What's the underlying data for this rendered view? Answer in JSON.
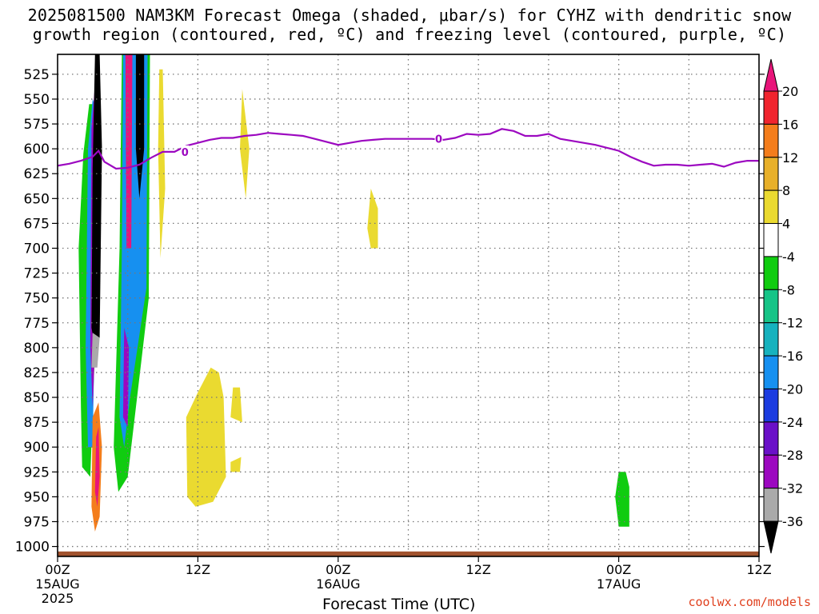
{
  "title_line1": "2025081500 NAM3KM Forecast Omega (shaded, μbar/s) for CYHZ with dendritic snow",
  "title_line2": "growth region (contoured, red, ºC) and freezing level (contoured, purple, ºC)",
  "credit": "coolwx.com/models",
  "chart_data": {
    "type": "time-height cross section",
    "title": "2025081500 NAM3KM Forecast Omega (shaded, μbar/s) for CYHZ with dendritic snow growth region (contoured, red, ºC) and freezing level (contoured, purple, ºC)",
    "xlabel": "Forecast Time (UTC)",
    "ylabel": "",
    "x_range_hours": [
      0,
      60
    ],
    "y_range_hPa": [
      1010,
      505
    ],
    "grid": true,
    "x_ticks": [
      {
        "hour": 0,
        "label": "00Z",
        "date": "15AUG",
        "year": "2025"
      },
      {
        "hour": 12,
        "label": "12Z",
        "date": "",
        "year": ""
      },
      {
        "hour": 24,
        "label": "00Z",
        "date": "16AUG",
        "year": ""
      },
      {
        "hour": 36,
        "label": "12Z",
        "date": "",
        "year": ""
      },
      {
        "hour": 48,
        "label": "00Z",
        "date": "17AUG",
        "year": ""
      },
      {
        "hour": 60,
        "label": "12Z",
        "date": "",
        "year": ""
      }
    ],
    "y_ticks": [
      "525",
      "550",
      "575",
      "600",
      "625",
      "650",
      "675",
      "700",
      "725",
      "750",
      "775",
      "800",
      "825",
      "850",
      "875",
      "900",
      "925",
      "950",
      "975",
      "1000"
    ],
    "colorbar": {
      "labels": [
        "20",
        "16",
        "12",
        "8",
        "4",
        "-4",
        "-8",
        "-12",
        "-16",
        "-20",
        "-24",
        "-28",
        "-32",
        "-36"
      ],
      "colors": [
        "#e8157a",
        "#f0242e",
        "#f47d1c",
        "#e8b02a",
        "#eada30",
        "#ffffff",
        "#10cc10",
        "#16c487",
        "#16b2be",
        "#1690f0",
        "#1c3ce0",
        "#6a10c8",
        "#9c08c0",
        "#aaaaaa",
        "#000000"
      ]
    },
    "freezing_level_label": "0",
    "freezing_level_hPa": [
      [
        0,
        617
      ],
      [
        1,
        615
      ],
      [
        2,
        612
      ],
      [
        3,
        608
      ],
      [
        3.5,
        602
      ],
      [
        4,
        613
      ],
      [
        5,
        620
      ],
      [
        6,
        619
      ],
      [
        7,
        616
      ],
      [
        8,
        609
      ],
      [
        9,
        603
      ],
      [
        10,
        603
      ],
      [
        11,
        597
      ],
      [
        12,
        594
      ],
      [
        13,
        591
      ],
      [
        14,
        589
      ],
      [
        15,
        589
      ],
      [
        16,
        587
      ],
      [
        17,
        586
      ],
      [
        18,
        584
      ],
      [
        19,
        585
      ],
      [
        20,
        586
      ],
      [
        21,
        587
      ],
      [
        22,
        590
      ],
      [
        23,
        593
      ],
      [
        24,
        596
      ],
      [
        25,
        594
      ],
      [
        26,
        592
      ],
      [
        27,
        591
      ],
      [
        28,
        590
      ],
      [
        29,
        590
      ],
      [
        30,
        590
      ],
      [
        31,
        590
      ],
      [
        32,
        590
      ],
      [
        33,
        591
      ],
      [
        34,
        589
      ],
      [
        35,
        585
      ],
      [
        36,
        586
      ],
      [
        37,
        585
      ],
      [
        38,
        580
      ],
      [
        39,
        582
      ],
      [
        40,
        587
      ],
      [
        41,
        587
      ],
      [
        42,
        585
      ],
      [
        43,
        590
      ],
      [
        44,
        592
      ],
      [
        45,
        594
      ],
      [
        46,
        596
      ],
      [
        47,
        599
      ],
      [
        48,
        602
      ],
      [
        49,
        608
      ],
      [
        50,
        613
      ],
      [
        51,
        617
      ],
      [
        52,
        616
      ],
      [
        53,
        616
      ],
      [
        54,
        617
      ],
      [
        55,
        616
      ],
      [
        56,
        615
      ],
      [
        57,
        618
      ],
      [
        58,
        614
      ],
      [
        59,
        612
      ],
      [
        60,
        612
      ]
    ],
    "surface_hPa": 1005,
    "omega_regions": [
      {
        "level": "-8",
        "color": "#10cc10",
        "polygon": [
          [
            2.2,
            605
          ],
          [
            1.8,
            700
          ],
          [
            2.0,
            860
          ],
          [
            2.1,
            920
          ],
          [
            2.8,
            930
          ],
          [
            3.2,
            800
          ],
          [
            3.5,
            600
          ],
          [
            3.3,
            555
          ],
          [
            2.7,
            555
          ]
        ]
      },
      {
        "level": "-16",
        "color": "#1690f0",
        "polygon": [
          [
            2.6,
            600
          ],
          [
            2.4,
            800
          ],
          [
            2.6,
            900
          ],
          [
            3.0,
            900
          ],
          [
            3.3,
            700
          ],
          [
            3.3,
            560
          ],
          [
            3.0,
            550
          ]
        ]
      },
      {
        "level": "-28",
        "color": "#9c08c0",
        "polygon": [
          [
            2.9,
            580
          ],
          [
            2.8,
            800
          ],
          [
            3.0,
            860
          ],
          [
            3.2,
            800
          ],
          [
            3.6,
            560
          ],
          [
            3.3,
            520
          ]
        ]
      },
      {
        "level": "-36",
        "color": "#000000",
        "polygon": [
          [
            3.0,
            620
          ],
          [
            2.9,
            780
          ],
          [
            3.2,
            800
          ],
          [
            3.6,
            790
          ],
          [
            3.8,
            600
          ],
          [
            3.6,
            505
          ],
          [
            3.2,
            505
          ]
        ]
      },
      {
        "level": "-32",
        "color": "#aaaaaa",
        "polygon": [
          [
            3.0,
            785
          ],
          [
            2.9,
            820
          ],
          [
            3.4,
            820
          ],
          [
            3.6,
            790
          ]
        ]
      },
      {
        "level": "12",
        "color": "#f47d1c",
        "polygon": [
          [
            3.0,
            870
          ],
          [
            2.9,
            960
          ],
          [
            3.2,
            985
          ],
          [
            3.6,
            970
          ],
          [
            3.8,
            900
          ],
          [
            3.5,
            855
          ]
        ]
      },
      {
        "level": "20",
        "color": "#e8157a",
        "polygon": [
          [
            3.3,
            890
          ],
          [
            3.2,
            945
          ],
          [
            3.4,
            960
          ],
          [
            3.6,
            930
          ],
          [
            3.5,
            880
          ]
        ]
      },
      {
        "level": "-8",
        "color": "#10cc10",
        "polygon": [
          [
            5.5,
            505
          ],
          [
            5.3,
            700
          ],
          [
            4.8,
            900
          ],
          [
            5.2,
            945
          ],
          [
            6.0,
            930
          ],
          [
            7.8,
            750
          ],
          [
            7.9,
            505
          ]
        ]
      },
      {
        "level": "-16",
        "color": "#1690f0",
        "polygon": [
          [
            5.6,
            505
          ],
          [
            5.5,
            700
          ],
          [
            5.3,
            870
          ],
          [
            5.7,
            900
          ],
          [
            6.2,
            850
          ],
          [
            7.6,
            740
          ],
          [
            7.7,
            505
          ]
        ]
      },
      {
        "level": "-28",
        "color": "#9c08c0",
        "polygon": [
          [
            5.7,
            780
          ],
          [
            5.6,
            870
          ],
          [
            6.0,
            880
          ],
          [
            6.1,
            800
          ]
        ]
      },
      {
        "level": "20",
        "color": "#e8157a",
        "polygon": [
          [
            5.8,
            505
          ],
          [
            5.9,
            700
          ],
          [
            6.3,
            700
          ],
          [
            6.4,
            505
          ]
        ]
      },
      {
        "level": "-36",
        "color": "#000000",
        "polygon": [
          [
            6.7,
            505
          ],
          [
            6.7,
            600
          ],
          [
            7.0,
            650
          ],
          [
            7.4,
            600
          ],
          [
            7.4,
            505
          ]
        ]
      },
      {
        "level": "4",
        "color": "#eada30",
        "polygon": [
          [
            8.7,
            520
          ],
          [
            8.6,
            600
          ],
          [
            8.8,
            710
          ],
          [
            9.2,
            640
          ],
          [
            9.0,
            520
          ]
        ]
      },
      {
        "level": "4",
        "color": "#eada30",
        "polygon": [
          [
            15.8,
            540
          ],
          [
            15.6,
            600
          ],
          [
            16.1,
            650
          ],
          [
            16.4,
            600
          ]
        ]
      },
      {
        "level": "4",
        "color": "#eada30",
        "polygon": [
          [
            13.1,
            820
          ],
          [
            12.0,
            845
          ],
          [
            11.0,
            870
          ],
          [
            11.1,
            950
          ],
          [
            11.8,
            960
          ],
          [
            13.3,
            955
          ],
          [
            14.4,
            930
          ],
          [
            14.2,
            850
          ],
          [
            13.8,
            825
          ]
        ]
      },
      {
        "level": "4",
        "color": "#eada30",
        "polygon": [
          [
            26.8,
            640
          ],
          [
            26.5,
            680
          ],
          [
            26.8,
            700
          ],
          [
            27.4,
            700
          ],
          [
            27.4,
            660
          ]
        ]
      },
      {
        "level": "4",
        "color": "#eada30",
        "polygon": [
          [
            15.0,
            840
          ],
          [
            14.8,
            870
          ],
          [
            15.8,
            875
          ],
          [
            15.6,
            840
          ]
        ]
      },
      {
        "level": "4",
        "color": "#eada30",
        "polygon": [
          [
            14.8,
            915
          ],
          [
            15.7,
            910
          ],
          [
            15.6,
            925
          ],
          [
            14.8,
            925
          ]
        ]
      },
      {
        "level": "-4",
        "color": "#10cc10",
        "polygon": [
          [
            48.0,
            925
          ],
          [
            47.7,
            950
          ],
          [
            48.0,
            980
          ],
          [
            48.9,
            980
          ],
          [
            48.9,
            940
          ],
          [
            48.6,
            925
          ]
        ]
      }
    ]
  }
}
